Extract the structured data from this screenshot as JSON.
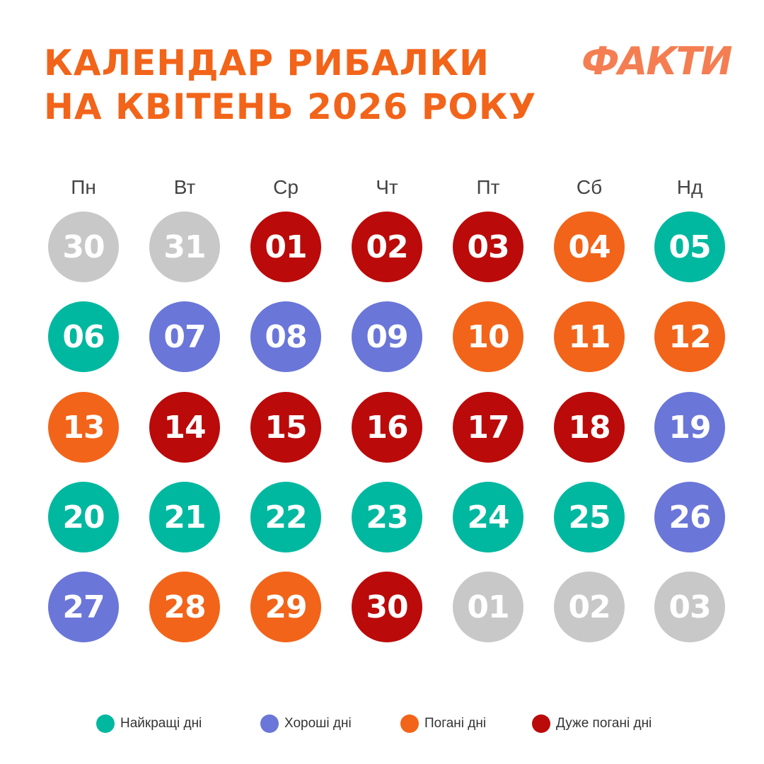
{
  "title": {
    "line1": "КАЛЕНДАР РИБАЛКИ",
    "line2": "НА КВІТЕНЬ 2026 РОКУ"
  },
  "logo": "ФАКТИ",
  "weekdays": [
    "Пн",
    "Вт",
    "Ср",
    "Чт",
    "Пт",
    "Сб",
    "Нд"
  ],
  "colors": {
    "best": "#00b8a0",
    "good": "#6a76d8",
    "bad": "#f26419",
    "very_bad": "#bb0a0a",
    "other": "#c8c8c8"
  },
  "days": [
    {
      "label": "30",
      "type": "other"
    },
    {
      "label": "31",
      "type": "other"
    },
    {
      "label": "01",
      "type": "very_bad"
    },
    {
      "label": "02",
      "type": "very_bad"
    },
    {
      "label": "03",
      "type": "very_bad"
    },
    {
      "label": "04",
      "type": "bad"
    },
    {
      "label": "05",
      "type": "best"
    },
    {
      "label": "06",
      "type": "best"
    },
    {
      "label": "07",
      "type": "good"
    },
    {
      "label": "08",
      "type": "good"
    },
    {
      "label": "09",
      "type": "good"
    },
    {
      "label": "10",
      "type": "bad"
    },
    {
      "label": "11",
      "type": "bad"
    },
    {
      "label": "12",
      "type": "bad"
    },
    {
      "label": "13",
      "type": "bad"
    },
    {
      "label": "14",
      "type": "very_bad"
    },
    {
      "label": "15",
      "type": "very_bad"
    },
    {
      "label": "16",
      "type": "very_bad"
    },
    {
      "label": "17",
      "type": "very_bad"
    },
    {
      "label": "18",
      "type": "very_bad"
    },
    {
      "label": "19",
      "type": "good"
    },
    {
      "label": "20",
      "type": "best"
    },
    {
      "label": "21",
      "type": "best"
    },
    {
      "label": "22",
      "type": "best"
    },
    {
      "label": "23",
      "type": "best"
    },
    {
      "label": "24",
      "type": "best"
    },
    {
      "label": "25",
      "type": "best"
    },
    {
      "label": "26",
      "type": "good"
    },
    {
      "label": "27",
      "type": "good"
    },
    {
      "label": "28",
      "type": "bad"
    },
    {
      "label": "29",
      "type": "bad"
    },
    {
      "label": "30",
      "type": "very_bad"
    },
    {
      "label": "01",
      "type": "other"
    },
    {
      "label": "02",
      "type": "other"
    },
    {
      "label": "03",
      "type": "other"
    }
  ],
  "legend": [
    {
      "label": "Найкращі дні",
      "type": "best"
    },
    {
      "label": "Хороші дні",
      "type": "good"
    },
    {
      "label": "Погані дні",
      "type": "bad"
    },
    {
      "label": "Дуже погані дні",
      "type": "very_bad"
    }
  ]
}
